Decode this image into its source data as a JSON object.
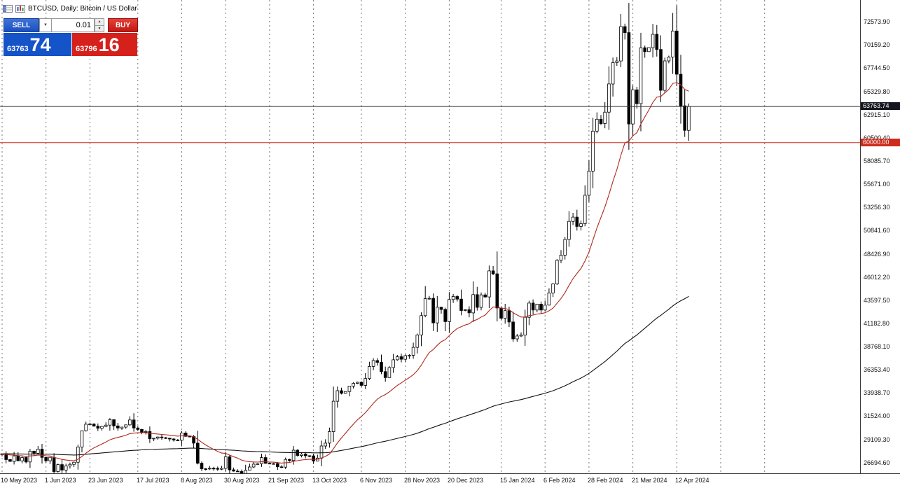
{
  "window": {
    "title": "BTCUSD, Daily:  Bitcoin / US Dollar"
  },
  "trade_panel": {
    "sell_label": "SELL",
    "buy_label": "BUY",
    "volume": "0.01",
    "sell_price_main": "63763",
    "sell_price_pips": "74",
    "buy_price_main": "63796",
    "buy_price_pips": "16",
    "sell_color": "#1b4fc0",
    "buy_color": "#d6201c"
  },
  "price_axis": {
    "labels": [
      "72573.90",
      "70159.20",
      "67744.50",
      "65329.80",
      "62915.10",
      "60500.40",
      "58085.70",
      "55671.00",
      "53256.30",
      "50841.60",
      "48426.90",
      "46012.20",
      "43597.50",
      "41182.80",
      "38768.10",
      "36353.40",
      "33938.70",
      "31524.00",
      "29109.30",
      "26694.60"
    ]
  },
  "time_axis": {
    "labels": [
      "10 May 2023",
      "1 Jun 2023",
      "23 Jun 2023",
      "17 Jul 2023",
      "8 Aug 2023",
      "30 Aug 2023",
      "21 Sep 2023",
      "13 Oct 2023",
      "6 Nov 2023",
      "28 Nov 2023",
      "20 Dec 2023",
      "15 Jan 2024",
      "6 Feb 2024",
      "28 Feb 2024",
      "21 Mar 2024",
      "12 Apr 2024"
    ]
  },
  "price_lines": [
    {
      "label": "63763.74",
      "value": 63763.74,
      "line_color": "#2b2b33",
      "badge_bg": "#15151f"
    },
    {
      "label": "60000.00",
      "value": 60000.0,
      "line_color": "#cc2b1d",
      "badge_bg": "#cc2b1d"
    }
  ],
  "chart_data": {
    "type": "candlestick",
    "symbol": "BTCUSD",
    "timeframe": "Daily",
    "pair_description": "Bitcoin / US Dollar",
    "bid": 63763.74,
    "ask": 63796.16,
    "ylim": [
      25650,
      74850
    ],
    "grid": "vertical-dashed",
    "open_first": 27500,
    "closes": [
      27620,
      27010,
      26810,
      27390,
      26880,
      27220,
      26760,
      27880,
      27660,
      28090,
      27230,
      26880,
      27240,
      25760,
      26480,
      25910,
      26340,
      26510,
      26730,
      28310,
      30010,
      30690,
      30700,
      30480,
      30270,
      30460,
      30590,
      31160,
      30510,
      30290,
      30390,
      30620,
      31130,
      30290,
      30140,
      29860,
      29920,
      29180,
      29230,
      29350,
      29280,
      29230,
      29150,
      29040,
      29020,
      29770,
      29430,
      29410,
      28720,
      26630,
      26050,
      26030,
      26100,
      26080,
      26000,
      26100,
      27300,
      25940,
      25800,
      25760,
      25160,
      25900,
      26230,
      26530,
      26570,
      27210,
      26620,
      26570,
      26580,
      26250,
      26220,
      27020,
      26910,
      27980,
      27430,
      27590,
      27410,
      27390,
      26860,
      27160,
      28420,
      28720,
      29920,
      33080,
      34180,
      33910,
      34090,
      34650,
      34940,
      35050,
      34730,
      35440,
      36700,
      37310,
      37130,
      36160,
      35540,
      36580,
      37390,
      37710,
      37450,
      37820,
      37860,
      38690,
      39970,
      41990,
      43760,
      43790,
      41240,
      42870,
      42640,
      41370,
      43670,
      43980,
      43710,
      42520,
      42610,
      42280,
      44180,
      42850,
      44150,
      43940,
      46650,
      46340,
      42780,
      41720,
      42510,
      41330,
      39570,
      39870,
      39970,
      41820,
      43300,
      42580,
      43190,
      42580,
      43080,
      44350,
      45290,
      47750,
      48290,
      49920,
      51800,
      52250,
      51280,
      51570,
      54520,
      57040,
      61200,
      62440,
      61990,
      63170,
      66110,
      68330,
      68500,
      72080,
      71450,
      61940,
      65500,
      64060,
      69880,
      69470,
      69890,
      71280,
      69700,
      65450,
      68510,
      68900,
      71620,
      67120,
      63840,
      61280,
      63763
    ],
    "time_gridlines": [
      0,
      11,
      22,
      34,
      45,
      56,
      67,
      78,
      90,
      101,
      112,
      125,
      136,
      147,
      158,
      169
    ],
    "future_gridlines": [
      180,
      191
    ],
    "indicators": [
      {
        "name": "moving-average-slow",
        "color": "#111111",
        "alpha": 0.012
      },
      {
        "name": "moving-average-fast",
        "color": "#b0281c",
        "alpha": 0.1
      }
    ]
  }
}
